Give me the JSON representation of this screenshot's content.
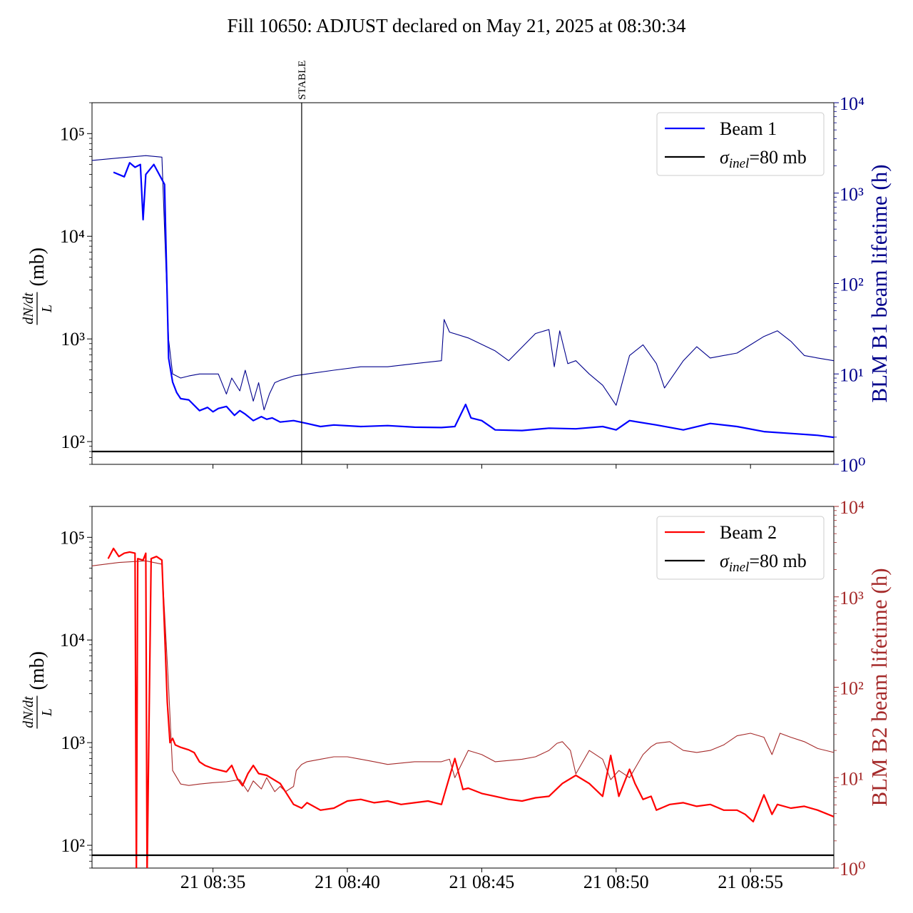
{
  "figure_title": "Fill 10650: ADJUST declared on May 21, 2025 at 08:30:34",
  "x_ticks": [
    "21 08:35",
    "21 08:40",
    "21 08:45",
    "21 08:50",
    "21 08:55"
  ],
  "colors": {
    "beam1_rate": "#0000ff",
    "beam1_lifetime": "#00008b",
    "beam2_rate": "#ff0000",
    "beam2_lifetime": "#a52a2a",
    "reference": "#000000"
  },
  "chart_data": [
    {
      "type": "line",
      "panel": "top",
      "x_unit": "minutes",
      "xlim": [
        0,
        27.6
      ],
      "x_tick_positions": [
        4.5,
        9.5,
        14.5,
        19.5,
        24.5
      ],
      "ylabel_left": "dN/dt / L (mb)",
      "ylabel_right": "BLM B1 beam lifetime (h)",
      "yscale": "log",
      "ylim_left": [
        60,
        200000
      ],
      "ylim_right": [
        1,
        10000
      ],
      "left_ticks": [
        "10²",
        "10³",
        "10⁴",
        "10⁵"
      ],
      "right_ticks": [
        "10⁰",
        "10¹",
        "10²",
        "10³",
        "10⁴"
      ],
      "vline": {
        "x": 7.8,
        "label": "STABLE"
      },
      "legend": {
        "position": "top-right",
        "entries": [
          "Beam 1",
          "σinel=80 mb"
        ]
      },
      "series": [
        {
          "name": "Beam 1",
          "axis": "left",
          "x": [
            0.8,
            1.2,
            1.4,
            1.6,
            1.8,
            1.9,
            2.0,
            2.3,
            2.7,
            2.85,
            3.0,
            3.15,
            3.3,
            3.6,
            4.0,
            4.3,
            4.5,
            4.7,
            5.0,
            5.3,
            5.5,
            5.7,
            6.0,
            6.3,
            6.5,
            6.7,
            7.0,
            7.5,
            8.0,
            8.5,
            9.0,
            10.0,
            11.0,
            12.0,
            13.0,
            13.5,
            13.9,
            14.1,
            14.5,
            15.0,
            16.0,
            17.0,
            18.0,
            19.0,
            19.5,
            20.0,
            21.0,
            22.0,
            23.0,
            24.0,
            25.0,
            26.0,
            27.0,
            27.6
          ],
          "values": [
            42000,
            38000,
            52000,
            47000,
            50000,
            14500,
            40000,
            50000,
            32000,
            650,
            380,
            300,
            262,
            255,
            200,
            215,
            195,
            210,
            220,
            180,
            200,
            185,
            160,
            175,
            165,
            170,
            155,
            160,
            150,
            140,
            145,
            140,
            143,
            138,
            137,
            140,
            230,
            170,
            160,
            130,
            128,
            135,
            133,
            140,
            130,
            160,
            145,
            130,
            150,
            140,
            125,
            120,
            115,
            110
          ]
        },
        {
          "name": "Beam 1 lifetime",
          "axis": "right",
          "x": [
            0,
            1.0,
            2.0,
            2.6,
            2.85,
            3.0,
            3.3,
            3.6,
            4.0,
            4.7,
            5.0,
            5.2,
            5.5,
            5.7,
            6.0,
            6.2,
            6.4,
            6.6,
            6.8,
            7.0,
            7.5,
            8.0,
            9.0,
            10.0,
            11.0,
            12.0,
            13.0,
            13.1,
            13.3,
            14.0,
            15.0,
            15.5,
            16.5,
            17.0,
            17.2,
            17.4,
            17.7,
            18.0,
            18.5,
            19.0,
            19.5,
            20.0,
            20.5,
            21.0,
            21.3,
            22.0,
            22.5,
            23.0,
            24.0,
            24.5,
            25.0,
            25.5,
            26.0,
            26.5,
            27.0,
            27.6
          ],
          "values": [
            2300,
            2450,
            2600,
            2500,
            24,
            10,
            9,
            9.5,
            10,
            10,
            6,
            9,
            6.5,
            11,
            5,
            8,
            4,
            6,
            8,
            8.5,
            9.5,
            10,
            11,
            12,
            12,
            13,
            14,
            40,
            29,
            25,
            18,
            14,
            28,
            31,
            12,
            30,
            13,
            14,
            10,
            7.5,
            4.5,
            16,
            21,
            13,
            7,
            14,
            20,
            15,
            17,
            21,
            26,
            30,
            23,
            16,
            15,
            14
          ]
        },
        {
          "name": "σinel=80 mb",
          "axis": "left",
          "x": [
            0,
            27.6
          ],
          "values": [
            80,
            80
          ]
        }
      ]
    },
    {
      "type": "line",
      "panel": "bottom",
      "x_unit": "minutes",
      "xlim": [
        0,
        27.6
      ],
      "x_tick_positions": [
        4.5,
        9.5,
        14.5,
        19.5,
        24.5
      ],
      "ylabel_left": "dN/dt / L (mb)",
      "ylabel_right": "BLM B2 beam lifetime (h)",
      "yscale": "log",
      "ylim_left": [
        60,
        200000
      ],
      "ylim_right": [
        1,
        10000
      ],
      "left_ticks": [
        "10²",
        "10³",
        "10⁴",
        "10⁵"
      ],
      "right_ticks": [
        "10⁰",
        "10¹",
        "10²",
        "10³",
        "10⁴"
      ],
      "legend": {
        "position": "top-right",
        "entries": [
          "Beam 2",
          "σinel=80 mb"
        ]
      },
      "series": [
        {
          "name": "Beam 2",
          "axis": "left",
          "x": [
            0.6,
            0.8,
            1.0,
            1.2,
            1.4,
            1.6,
            1.65,
            1.7,
            1.9,
            2.0,
            2.05,
            2.2,
            2.4,
            2.6,
            2.8,
            2.9,
            3.0,
            3.1,
            3.3,
            3.6,
            3.8,
            4.0,
            4.2,
            4.5,
            5.0,
            5.2,
            5.4,
            5.6,
            5.8,
            6.0,
            6.2,
            6.5,
            7.0,
            7.5,
            7.8,
            8.0,
            8.5,
            9.0,
            9.5,
            10.0,
            10.5,
            11.0,
            11.5,
            12.0,
            12.5,
            13.0,
            13.5,
            13.8,
            14.0,
            14.5,
            15.0,
            15.5,
            16.0,
            16.5,
            17.0,
            17.5,
            18.0,
            18.5,
            19.0,
            19.3,
            19.6,
            20.0,
            20.2,
            20.5,
            20.8,
            21.0,
            21.5,
            22.0,
            22.5,
            23.0,
            23.5,
            24.0,
            24.3,
            24.6,
            25.0,
            25.3,
            25.5,
            26.0,
            26.5,
            27.0,
            27.6
          ],
          "values": [
            62000,
            78000,
            65000,
            70000,
            72000,
            70000,
            50,
            62000,
            60000,
            70000,
            50,
            62000,
            65000,
            60000,
            2500,
            1000,
            1100,
            950,
            900,
            850,
            800,
            650,
            600,
            560,
            520,
            600,
            450,
            380,
            500,
            600,
            500,
            480,
            400,
            250,
            230,
            260,
            220,
            230,
            270,
            280,
            260,
            270,
            250,
            260,
            270,
            250,
            700,
            350,
            360,
            320,
            300,
            280,
            270,
            290,
            300,
            400,
            480,
            400,
            300,
            750,
            300,
            550,
            400,
            280,
            300,
            220,
            250,
            260,
            240,
            250,
            220,
            220,
            200,
            170,
            310,
            200,
            250,
            230,
            240,
            220,
            190
          ]
        },
        {
          "name": "Beam 2 lifetime",
          "axis": "right",
          "x": [
            0,
            1.0,
            2.0,
            2.6,
            2.85,
            3.0,
            3.3,
            3.6,
            4.0,
            4.5,
            5.0,
            5.5,
            5.8,
            6.0,
            6.3,
            6.5,
            6.8,
            7.0,
            7.2,
            7.5,
            7.6,
            7.8,
            8.0,
            8.5,
            9.0,
            9.5,
            10.0,
            10.5,
            11.0,
            12.0,
            13.0,
            13.3,
            13.5,
            14.0,
            14.5,
            15.0,
            16.0,
            16.5,
            17.0,
            17.3,
            17.5,
            17.8,
            18.0,
            18.5,
            19.0,
            19.3,
            19.6,
            20.0,
            20.5,
            20.8,
            21.0,
            21.5,
            22.0,
            22.5,
            23.0,
            23.5,
            24.0,
            24.5,
            25.0,
            25.3,
            25.6,
            26.0,
            26.5,
            27.0,
            27.6
          ],
          "values": [
            2200,
            2400,
            2500,
            2300,
            100,
            12,
            8.5,
            8.2,
            8.5,
            8.8,
            9,
            9.5,
            7,
            9.2,
            7.5,
            10,
            7,
            8,
            7,
            8,
            12,
            14,
            15,
            16,
            17,
            17,
            16,
            15,
            14,
            15,
            15,
            16,
            10,
            20,
            18,
            15,
            16,
            17,
            20,
            24,
            25,
            20,
            11,
            20,
            16,
            9.5,
            12,
            10,
            18,
            22,
            24,
            25,
            20,
            19,
            20,
            23,
            29,
            31,
            28,
            18,
            31,
            28,
            25,
            21,
            19
          ]
        },
        {
          "name": "σinel=80 mb",
          "axis": "left",
          "x": [
            0,
            27.6
          ],
          "values": [
            80,
            80
          ]
        }
      ]
    }
  ]
}
